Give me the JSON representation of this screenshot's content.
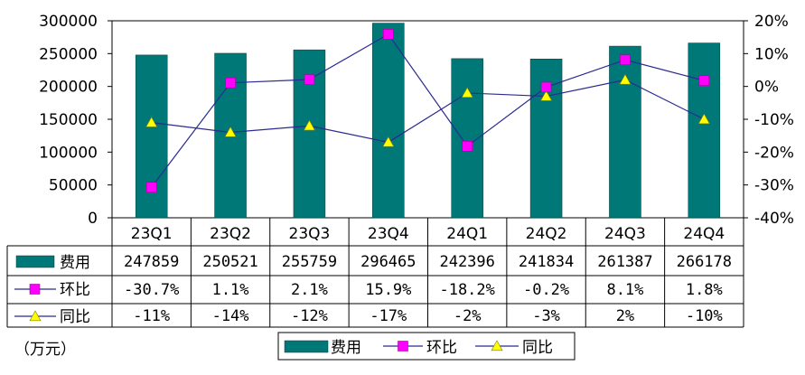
{
  "chart_data": {
    "type": "bar",
    "categories": [
      "23Q1",
      "23Q2",
      "23Q3",
      "23Q4",
      "24Q1",
      "24Q2",
      "24Q3",
      "24Q4"
    ],
    "ylim": [
      0,
      300000
    ],
    "y_ticks": [
      0,
      50000,
      100000,
      150000,
      200000,
      250000,
      300000
    ],
    "y2lim": [
      -40,
      20
    ],
    "y2_ticks": [
      "20%",
      "10%",
      "0%",
      "-10%",
      "-20%",
      "-30%",
      "-40%"
    ],
    "grid": false,
    "legend_position": "bottom",
    "unit_label": "（万元）",
    "colors": {
      "bar": "#007878",
      "qoq": "#ff00ff",
      "yoy": "#ffff00",
      "line": "#2a2a90"
    },
    "series": [
      {
        "name": "费用",
        "type": "bar",
        "axis": "left",
        "values": [
          247859,
          250521,
          255759,
          296465,
          242396,
          241834,
          261387,
          266178
        ],
        "labels": [
          "247859",
          "250521",
          "255759",
          "296465",
          "242396",
          "241834",
          "261387",
          "266178"
        ]
      },
      {
        "name": "环比",
        "type": "line",
        "axis": "right",
        "marker": "square",
        "values": [
          -30.7,
          1.1,
          2.1,
          15.9,
          -18.2,
          -0.2,
          8.1,
          1.8
        ],
        "labels": [
          "-30.7%",
          "1.1%",
          "2.1%",
          "15.9%",
          "-18.2%",
          "-0.2%",
          "8.1%",
          "1.8%"
        ]
      },
      {
        "name": "同比",
        "type": "line",
        "axis": "right",
        "marker": "triangle",
        "values": [
          -11,
          -14,
          -12,
          -17,
          -2,
          -3,
          2,
          -10
        ],
        "labels": [
          "-11%",
          "-14%",
          "-12%",
          "-17%",
          "-2%",
          "-3%",
          "2%",
          "-10%"
        ]
      }
    ]
  }
}
